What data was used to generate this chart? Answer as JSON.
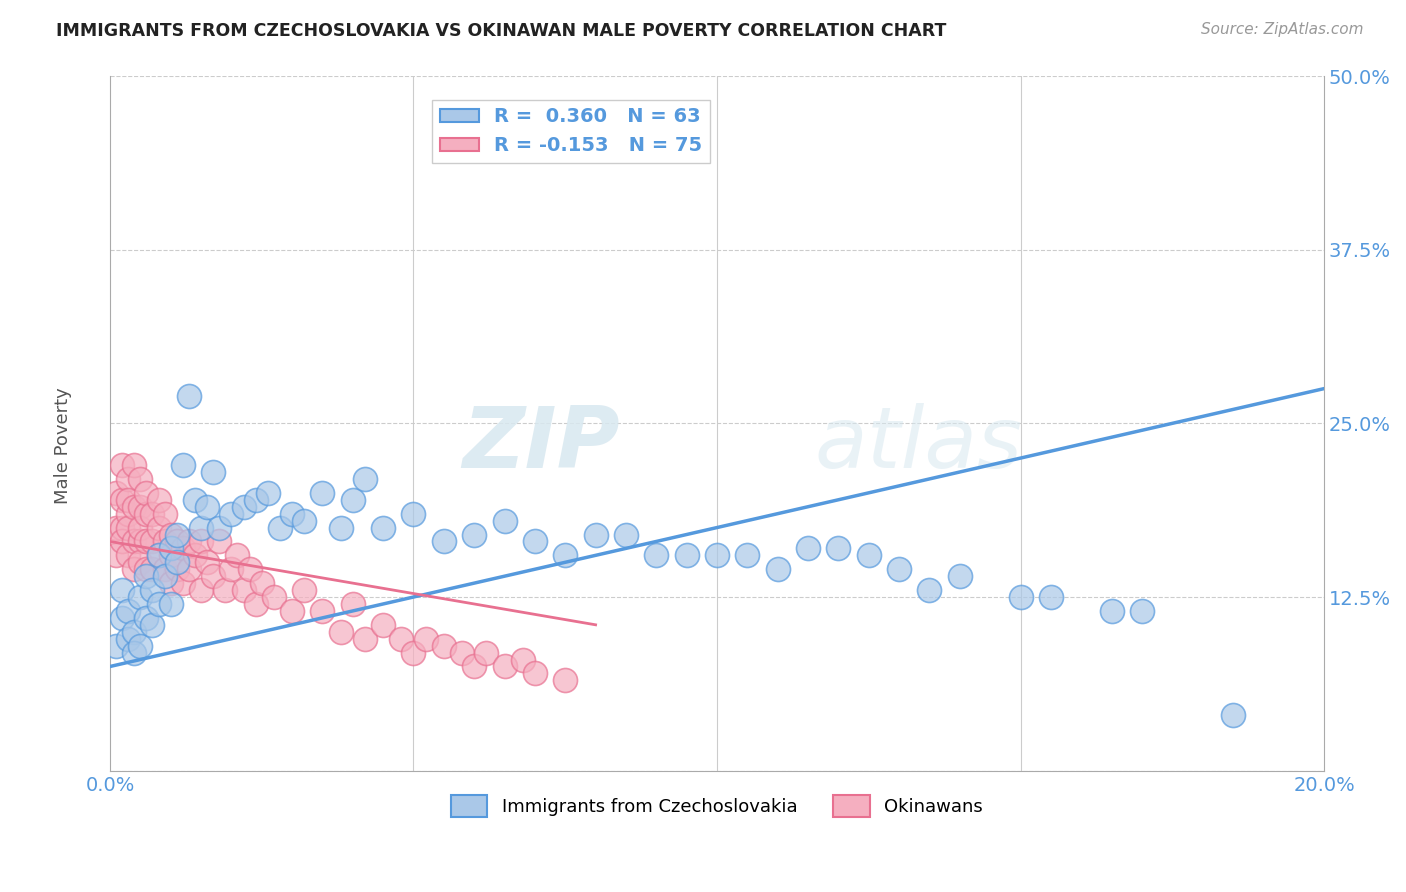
{
  "title": "IMMIGRANTS FROM CZECHOSLOVAKIA VS OKINAWAN MALE POVERTY CORRELATION CHART",
  "source": "Source: ZipAtlas.com",
  "ylabel": "Male Poverty",
  "xlim": [
    0,
    0.2
  ],
  "ylim": [
    0,
    0.5
  ],
  "xticks": [
    0.0,
    0.05,
    0.1,
    0.15,
    0.2
  ],
  "xtick_labels": [
    "0.0%",
    "",
    "",
    "",
    "20.0%"
  ],
  "ytick_labels": [
    "",
    "12.5%",
    "25.0%",
    "37.5%",
    "50.0%"
  ],
  "yticks": [
    0.0,
    0.125,
    0.25,
    0.375,
    0.5
  ],
  "R_blue": 0.36,
  "N_blue": 63,
  "R_pink": -0.153,
  "N_pink": 75,
  "blue_color": "#aac8e8",
  "pink_color": "#f5afc0",
  "blue_line_color": "#5599dd",
  "pink_line_color": "#e87090",
  "legend_label_blue": "Immigrants from Czechoslovakia",
  "legend_label_pink": "Okinawans",
  "watermark_zip": "ZIP",
  "watermark_atlas": "atlas",
  "blue_scatter_x": [
    0.001,
    0.002,
    0.002,
    0.003,
    0.003,
    0.004,
    0.004,
    0.005,
    0.005,
    0.006,
    0.006,
    0.007,
    0.007,
    0.008,
    0.008,
    0.009,
    0.01,
    0.01,
    0.011,
    0.011,
    0.012,
    0.013,
    0.014,
    0.015,
    0.016,
    0.017,
    0.018,
    0.02,
    0.022,
    0.024,
    0.026,
    0.028,
    0.03,
    0.032,
    0.035,
    0.038,
    0.04,
    0.042,
    0.045,
    0.05,
    0.055,
    0.06,
    0.065,
    0.07,
    0.075,
    0.08,
    0.085,
    0.09,
    0.095,
    0.1,
    0.105,
    0.11,
    0.115,
    0.12,
    0.125,
    0.13,
    0.135,
    0.14,
    0.15,
    0.155,
    0.165,
    0.17,
    0.185
  ],
  "blue_scatter_y": [
    0.09,
    0.13,
    0.11,
    0.115,
    0.095,
    0.1,
    0.085,
    0.09,
    0.125,
    0.11,
    0.14,
    0.105,
    0.13,
    0.12,
    0.155,
    0.14,
    0.16,
    0.12,
    0.15,
    0.17,
    0.22,
    0.27,
    0.195,
    0.175,
    0.19,
    0.215,
    0.175,
    0.185,
    0.19,
    0.195,
    0.2,
    0.175,
    0.185,
    0.18,
    0.2,
    0.175,
    0.195,
    0.21,
    0.175,
    0.185,
    0.165,
    0.17,
    0.18,
    0.165,
    0.155,
    0.17,
    0.17,
    0.155,
    0.155,
    0.155,
    0.155,
    0.145,
    0.16,
    0.16,
    0.155,
    0.145,
    0.13,
    0.14,
    0.125,
    0.125,
    0.115,
    0.115,
    0.04
  ],
  "pink_scatter_x": [
    0.001,
    0.001,
    0.001,
    0.002,
    0.002,
    0.002,
    0.002,
    0.003,
    0.003,
    0.003,
    0.003,
    0.003,
    0.004,
    0.004,
    0.004,
    0.004,
    0.005,
    0.005,
    0.005,
    0.005,
    0.005,
    0.006,
    0.006,
    0.006,
    0.006,
    0.007,
    0.007,
    0.007,
    0.008,
    0.008,
    0.008,
    0.009,
    0.009,
    0.009,
    0.01,
    0.01,
    0.01,
    0.011,
    0.011,
    0.012,
    0.012,
    0.013,
    0.013,
    0.014,
    0.015,
    0.015,
    0.016,
    0.017,
    0.018,
    0.019,
    0.02,
    0.021,
    0.022,
    0.023,
    0.024,
    0.025,
    0.027,
    0.03,
    0.032,
    0.035,
    0.038,
    0.04,
    0.042,
    0.045,
    0.048,
    0.05,
    0.052,
    0.055,
    0.058,
    0.06,
    0.062,
    0.065,
    0.068,
    0.07,
    0.075
  ],
  "pink_scatter_y": [
    0.175,
    0.155,
    0.2,
    0.22,
    0.175,
    0.195,
    0.165,
    0.185,
    0.21,
    0.155,
    0.195,
    0.175,
    0.19,
    0.165,
    0.22,
    0.145,
    0.19,
    0.165,
    0.21,
    0.15,
    0.175,
    0.185,
    0.165,
    0.145,
    0.2,
    0.165,
    0.185,
    0.145,
    0.175,
    0.155,
    0.195,
    0.165,
    0.185,
    0.145,
    0.17,
    0.155,
    0.135,
    0.165,
    0.145,
    0.16,
    0.135,
    0.165,
    0.145,
    0.155,
    0.165,
    0.13,
    0.15,
    0.14,
    0.165,
    0.13,
    0.145,
    0.155,
    0.13,
    0.145,
    0.12,
    0.135,
    0.125,
    0.115,
    0.13,
    0.115,
    0.1,
    0.12,
    0.095,
    0.105,
    0.095,
    0.085,
    0.095,
    0.09,
    0.085,
    0.075,
    0.085,
    0.075,
    0.08,
    0.07,
    0.065
  ],
  "blue_trend_x": [
    0.0,
    0.2
  ],
  "blue_trend_y": [
    0.075,
    0.275
  ],
  "pink_trend_x": [
    0.0,
    0.08
  ],
  "pink_trend_y": [
    0.165,
    0.105
  ]
}
